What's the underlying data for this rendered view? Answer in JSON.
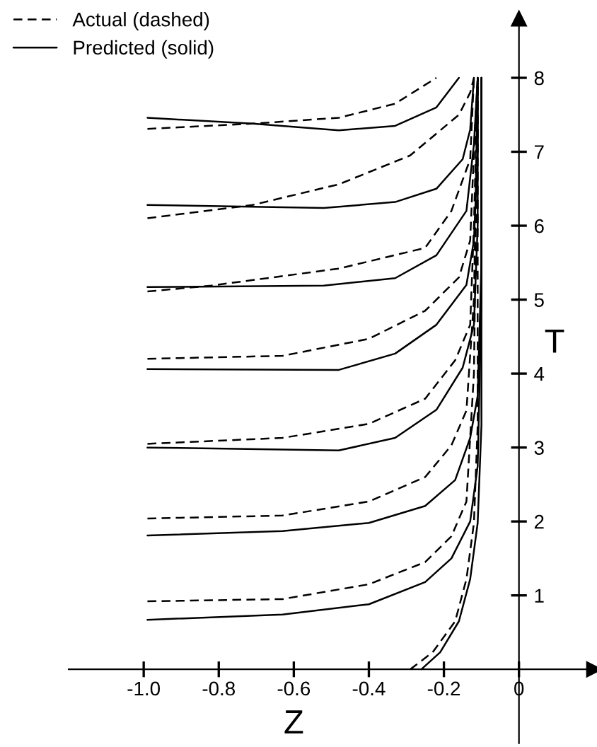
{
  "chart_data": {
    "type": "line",
    "xlabel": "Z",
    "ylabel": "T",
    "xlim": [
      -1.2,
      0.2
    ],
    "ylim": [
      -1,
      8.8
    ],
    "xticks": [
      {
        "value": -1.0,
        "label": "-1.0"
      },
      {
        "value": -0.8,
        "label": "-0.8"
      },
      {
        "value": -0.6,
        "label": "-0.6"
      },
      {
        "value": -0.4,
        "label": "-0.4"
      },
      {
        "value": -0.2,
        "label": "-0.2"
      },
      0
    ],
    "yticks": [
      1,
      2,
      3,
      4,
      5,
      6,
      7,
      8
    ],
    "grid": false,
    "legend": "top left",
    "marker": "none",
    "series": [
      {
        "name": "Actual (dashed)",
        "color": "#000000",
        "line_style": "dashed",
        "x": [
          -0.99,
          -0.71,
          -0.48,
          -0.33,
          -0.22
        ],
        "values": [
          7.31,
          7.38,
          7.46,
          7.65,
          8.0
        ]
      },
      {
        "name": "Predicted (solid)",
        "color": "#000000",
        "line_style": "solid",
        "x": [
          -0.99,
          -0.71,
          -0.48,
          -0.33,
          -0.22,
          -0.16
        ],
        "values": [
          7.46,
          7.38,
          7.29,
          7.35,
          7.6,
          8.0
        ]
      },
      {
        "color": "#000000",
        "line_style": "dashed",
        "x": [
          -0.99,
          -0.71,
          -0.48,
          -0.29,
          -0.16,
          -0.13,
          -0.12
        ],
        "values": [
          6.1,
          6.28,
          6.56,
          6.95,
          7.5,
          7.8,
          8.0
        ]
      },
      {
        "color": "#000000",
        "line_style": "solid",
        "x": [
          -0.99,
          -0.52,
          -0.33,
          -0.22,
          -0.15,
          -0.13,
          -0.12
        ],
        "values": [
          6.28,
          6.24,
          6.32,
          6.5,
          6.9,
          7.3,
          8.0
        ]
      },
      {
        "color": "#000000",
        "line_style": "dashed",
        "x": [
          -0.99,
          -0.82,
          -0.48,
          -0.25,
          -0.18,
          -0.13,
          -0.12
        ],
        "values": [
          5.11,
          5.19,
          5.42,
          5.7,
          6.2,
          6.9,
          8.0
        ]
      },
      {
        "color": "#000000",
        "line_style": "solid",
        "x": [
          -0.99,
          -0.52,
          -0.33,
          -0.22,
          -0.14,
          -0.12,
          -0.11
        ],
        "values": [
          5.17,
          5.19,
          5.29,
          5.6,
          6.2,
          7.1,
          8.0
        ]
      },
      {
        "color": "#000000",
        "line_style": "dashed",
        "x": [
          -0.99,
          -0.63,
          -0.4,
          -0.25,
          -0.16,
          -0.13,
          -0.12,
          -0.11
        ],
        "values": [
          4.2,
          4.24,
          4.47,
          4.85,
          5.3,
          5.8,
          7.0,
          8.0
        ]
      },
      {
        "color": "#000000",
        "line_style": "solid",
        "x": [
          -0.99,
          -0.48,
          -0.33,
          -0.22,
          -0.14,
          -0.12,
          -0.11,
          -0.11
        ],
        "values": [
          4.06,
          4.05,
          4.27,
          4.66,
          5.2,
          5.8,
          7.0,
          8.0
        ]
      },
      {
        "color": "#000000",
        "line_style": "dashed",
        "x": [
          -0.99,
          -0.63,
          -0.4,
          -0.25,
          -0.17,
          -0.13,
          -0.12,
          -0.11
        ],
        "values": [
          3.05,
          3.13,
          3.32,
          3.66,
          4.18,
          4.66,
          6.0,
          8.0
        ]
      },
      {
        "color": "#000000",
        "line_style": "solid",
        "x": [
          -0.99,
          -0.48,
          -0.33,
          -0.22,
          -0.15,
          -0.12,
          -0.11,
          -0.11
        ],
        "values": [
          3.0,
          2.96,
          3.13,
          3.51,
          4.08,
          4.66,
          6.0,
          8.0
        ]
      },
      {
        "color": "#000000",
        "line_style": "dashed",
        "x": [
          -0.99,
          -0.63,
          -0.4,
          -0.25,
          -0.18,
          -0.14,
          -0.12,
          -0.11
        ],
        "values": [
          2.04,
          2.08,
          2.27,
          2.6,
          3.03,
          3.5,
          5.0,
          8.0
        ]
      },
      {
        "color": "#000000",
        "line_style": "solid",
        "x": [
          -0.99,
          -0.63,
          -0.4,
          -0.25,
          -0.17,
          -0.13,
          -0.11,
          -0.1,
          -0.1
        ],
        "values": [
          1.81,
          1.87,
          1.98,
          2.21,
          2.56,
          3.13,
          3.7,
          5.5,
          8.0
        ]
      },
      {
        "color": "#000000",
        "line_style": "dashed",
        "x": [
          -0.99,
          -0.63,
          -0.4,
          -0.25,
          -0.18,
          -0.14,
          -0.12,
          -0.11
        ],
        "values": [
          0.92,
          0.95,
          1.15,
          1.45,
          1.8,
          2.27,
          4.0,
          8.0
        ]
      },
      {
        "color": "#000000",
        "line_style": "solid",
        "x": [
          -0.99,
          -0.63,
          -0.4,
          -0.25,
          -0.18,
          -0.13,
          -0.11,
          -0.1,
          -0.1
        ],
        "values": [
          0.67,
          0.74,
          0.88,
          1.18,
          1.5,
          2.0,
          2.75,
          5.0,
          8.0
        ]
      },
      {
        "color": "#000000",
        "line_style": "dashed",
        "x": [
          -0.29,
          -0.23,
          -0.17,
          -0.14,
          -0.12,
          -0.11,
          -0.11
        ],
        "values": [
          0,
          0.23,
          0.65,
          1.22,
          1.98,
          3.3,
          8.0
        ]
      },
      {
        "color": "#000000",
        "line_style": "solid",
        "x": [
          -0.26,
          -0.21,
          -0.16,
          -0.13,
          -0.11,
          -0.1,
          -0.1
        ],
        "values": [
          0,
          0.23,
          0.65,
          1.22,
          1.98,
          3.3,
          8.0
        ]
      }
    ]
  }
}
